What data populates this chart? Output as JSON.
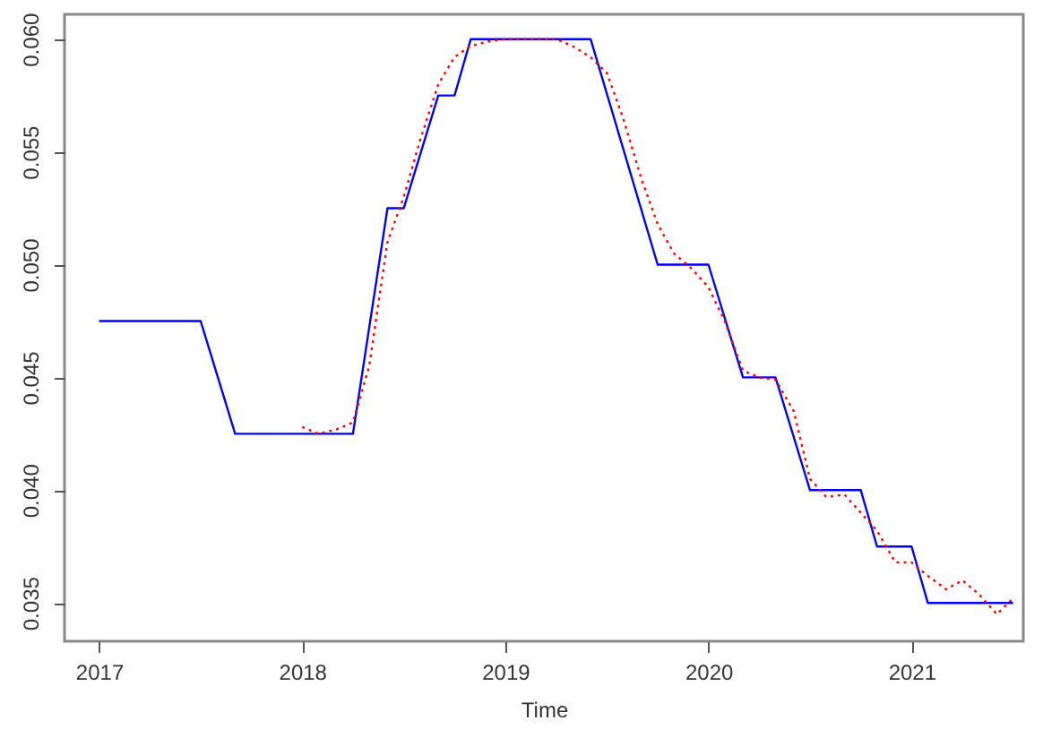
{
  "chart_data": {
    "type": "line",
    "xlabel": "Time",
    "xlim": [
      2016.83,
      2021.55
    ],
    "xticks": [
      2017,
      2018,
      2019,
      2020,
      2021
    ],
    "ylim": [
      0.0333,
      0.0611
    ],
    "yticks": [
      0.035,
      {
        "value": 0.04,
        "label": "0.040"
      },
      0.045,
      {
        "value": 0.05,
        "label": "0.050"
      },
      0.055,
      {
        "value": 0.06,
        "label": "0.060"
      }
    ],
    "grid": false,
    "series": [
      {
        "color": "#0000ff",
        "line_style": "solid",
        "x": [
          2017.0,
          2017.5,
          2017.67,
          2018.25,
          2018.42,
          2018.5,
          2018.67,
          2018.75,
          2018.83,
          2019.42,
          2019.75,
          2020.0,
          2020.17,
          2020.33,
          2020.5,
          2020.75,
          2020.83,
          2021.0,
          2021.08,
          2021.5
        ],
        "values": [
          0.0475,
          0.0475,
          0.0425,
          0.0425,
          0.0525,
          0.0525,
          0.0575,
          0.0575,
          0.06,
          0.06,
          0.05,
          0.05,
          0.045,
          0.045,
          0.04,
          0.04,
          0.0375,
          0.0375,
          0.035,
          0.035
        ]
      },
      {
        "color": "#ff0000",
        "line_style": "dotted",
        "x": [
          2018.0,
          2018.08,
          2018.17,
          2018.25,
          2018.33,
          2018.42,
          2018.5,
          2018.58,
          2018.67,
          2018.75,
          2018.83,
          2018.92,
          2019.0,
          2019.17,
          2019.25,
          2019.33,
          2019.42,
          2019.5,
          2019.58,
          2019.67,
          2019.75,
          2019.83,
          2019.92,
          2020.0,
          2020.08,
          2020.17,
          2020.25,
          2020.33,
          2020.42,
          2020.5,
          2020.58,
          2020.67,
          2020.75,
          2020.83,
          2020.92,
          2021.0,
          2021.08,
          2021.17,
          2021.25,
          2021.33,
          2021.42,
          2021.5
        ],
        "values": [
          0.0428,
          0.0425,
          0.0427,
          0.043,
          0.0455,
          0.051,
          0.053,
          0.0555,
          0.058,
          0.0592,
          0.0597,
          0.0599,
          0.06,
          0.06,
          0.06,
          0.0597,
          0.0592,
          0.0585,
          0.0565,
          0.0538,
          0.0518,
          0.0505,
          0.0498,
          0.049,
          0.0475,
          0.0453,
          0.045,
          0.0449,
          0.0435,
          0.0405,
          0.0397,
          0.0398,
          0.039,
          0.0382,
          0.0368,
          0.0368,
          0.0362,
          0.0356,
          0.036,
          0.0354,
          0.0345,
          0.0352
        ]
      }
    ]
  }
}
